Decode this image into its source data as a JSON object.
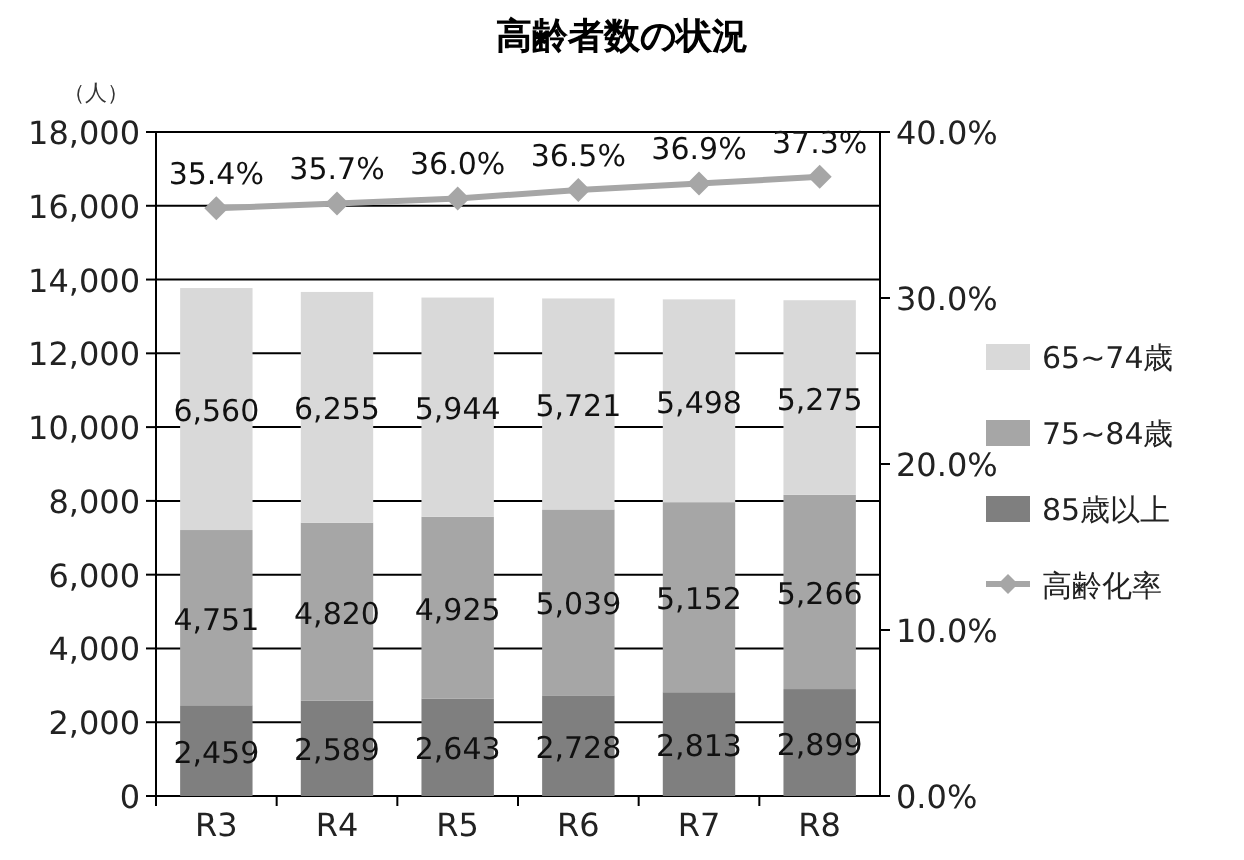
{
  "chart_data": {
    "type": "bar",
    "stacked": true,
    "title": "高齢者数の状況",
    "ylabel": "（人）",
    "categories": [
      "R3",
      "R4",
      "R5",
      "R6",
      "R7",
      "R8"
    ],
    "series": [
      {
        "name": "85歳以上",
        "color": "#7f7f7f",
        "values": [
          2459,
          2589,
          2643,
          2728,
          2813,
          2899
        ],
        "value_labels": [
          "2,459",
          "2,589",
          "2,643",
          "2,728",
          "2,813",
          "2,899"
        ]
      },
      {
        "name": "75~84歳",
        "color": "#a6a6a6",
        "values": [
          4751,
          4820,
          4925,
          5039,
          5152,
          5266
        ],
        "value_labels": [
          "4,751",
          "4,820",
          "4,925",
          "5,039",
          "5,152",
          "5,266"
        ]
      },
      {
        "name": "65~74歳",
        "color": "#d9d9d9",
        "values": [
          6560,
          6255,
          5944,
          5721,
          5498,
          5275
        ],
        "value_labels": [
          "6,560",
          "6,255",
          "5,944",
          "5,721",
          "5,498",
          "5,275"
        ]
      },
      {
        "name": "高齢化率",
        "type": "line",
        "axis": "y2",
        "color": "#a6a6a6",
        "marker": "diamond",
        "values": [
          35.4,
          35.7,
          36.0,
          36.5,
          36.9,
          37.3
        ],
        "value_labels": [
          "35.4%",
          "35.7%",
          "36.0%",
          "36.5%",
          "36.9%",
          "37.3%"
        ]
      }
    ],
    "ylim": [
      0,
      18000
    ],
    "yticks": [
      {
        "value": 0,
        "label": "0"
      },
      {
        "value": 2000,
        "label": "2,000"
      },
      {
        "value": 4000,
        "label": "4,000"
      },
      {
        "value": 6000,
        "label": "6,000"
      },
      {
        "value": 8000,
        "label": "8,000"
      },
      {
        "value": 10000,
        "label": "10,000"
      },
      {
        "value": 12000,
        "label": "12,000"
      },
      {
        "value": 14000,
        "label": "14,000"
      },
      {
        "value": 16000,
        "label": "16,000"
      },
      {
        "value": 18000,
        "label": "18,000"
      }
    ],
    "y2lim": [
      0,
      40
    ],
    "y2ticks": [
      {
        "value": 0,
        "label": "0.0%"
      },
      {
        "value": 10,
        "label": "10.0%"
      },
      {
        "value": 20,
        "label": "20.0%"
      },
      {
        "value": 30,
        "label": "30.0%"
      },
      {
        "value": 40,
        "label": "40.0%"
      }
    ],
    "grid": "y",
    "legend": "right"
  }
}
